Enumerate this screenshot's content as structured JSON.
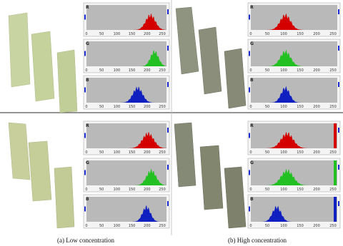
{
  "tick_labels": [
    "0",
    "50",
    "100",
    "150",
    "200",
    "250"
  ],
  "quadrants": [
    {
      "histograms": [
        {
          "channel": "R"
        },
        {
          "channel": "G"
        },
        {
          "channel": "B"
        }
      ]
    },
    {
      "histograms": [
        {
          "channel": "R"
        },
        {
          "channel": "G"
        },
        {
          "channel": "B"
        }
      ]
    },
    {
      "histograms": [
        {
          "channel": "R"
        },
        {
          "channel": "G"
        },
        {
          "channel": "B"
        }
      ]
    },
    {
      "histograms": [
        {
          "channel": "R"
        },
        {
          "channel": "G"
        },
        {
          "channel": "B"
        }
      ]
    }
  ],
  "captions": [
    "(a) Low concentration",
    "(b) High concentration"
  ]
}
